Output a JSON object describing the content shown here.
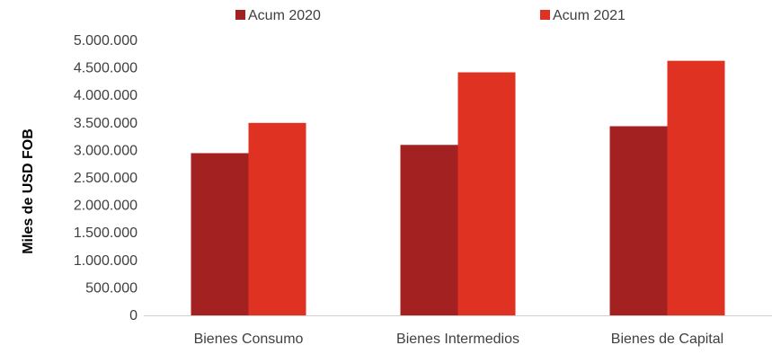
{
  "chart_data": {
    "type": "bar",
    "categories": [
      "Bienes Consumo",
      "Bienes Intermedios",
      "Bienes de Capital"
    ],
    "series": [
      {
        "name": "Acum 2020",
        "values": [
          2950000,
          3100000,
          3440000
        ],
        "color": "#A42121"
      },
      {
        "name": "Acum 2021",
        "values": [
          3500000,
          4420000,
          4630000
        ],
        "color": "#E03222"
      }
    ],
    "title": "",
    "xlabel": "",
    "ylabel": "Miles de USD FOB",
    "ylim": [
      0,
      5000000
    ],
    "yticks": [
      0,
      500000,
      1000000,
      1500000,
      2000000,
      2500000,
      3000000,
      3500000,
      4000000,
      4500000,
      5000000
    ],
    "ytick_labels": [
      "0",
      "500.000",
      "1.000.000",
      "1.500.000",
      "2.000.000",
      "2.500.000",
      "3.000.000",
      "3.500.000",
      "4.000.000",
      "4.500.000",
      "5.000.000"
    ],
    "grid": false,
    "legend_position": "top-center"
  }
}
